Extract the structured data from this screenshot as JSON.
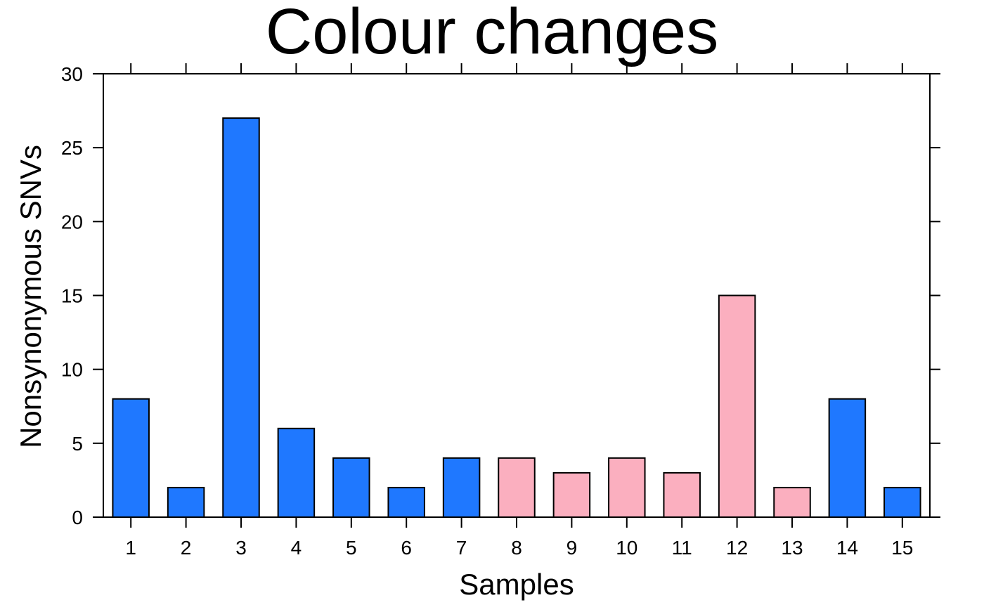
{
  "chart_data": {
    "type": "bar",
    "title": "Colour changes",
    "xlabel": "Samples",
    "ylabel": "Nonsynonymous SNVs",
    "categories": [
      "1",
      "2",
      "3",
      "4",
      "5",
      "6",
      "7",
      "8",
      "9",
      "10",
      "11",
      "12",
      "13",
      "14",
      "15"
    ],
    "values": [
      8,
      2,
      27,
      6,
      4,
      2,
      4,
      4,
      3,
      4,
      3,
      15,
      2,
      8,
      2
    ],
    "bar_colors": [
      "#1f78ff",
      "#1f78ff",
      "#1f78ff",
      "#1f78ff",
      "#1f78ff",
      "#1f78ff",
      "#1f78ff",
      "#fbafbf",
      "#fbafbf",
      "#fbafbf",
      "#fbafbf",
      "#fbafbf",
      "#fbafbf",
      "#1f78ff",
      "#1f78ff"
    ],
    "ylim": [
      0,
      30
    ],
    "yticks": [
      "0",
      "5",
      "10",
      "15",
      "20",
      "25",
      "30"
    ],
    "grid": false,
    "legend": "none"
  }
}
